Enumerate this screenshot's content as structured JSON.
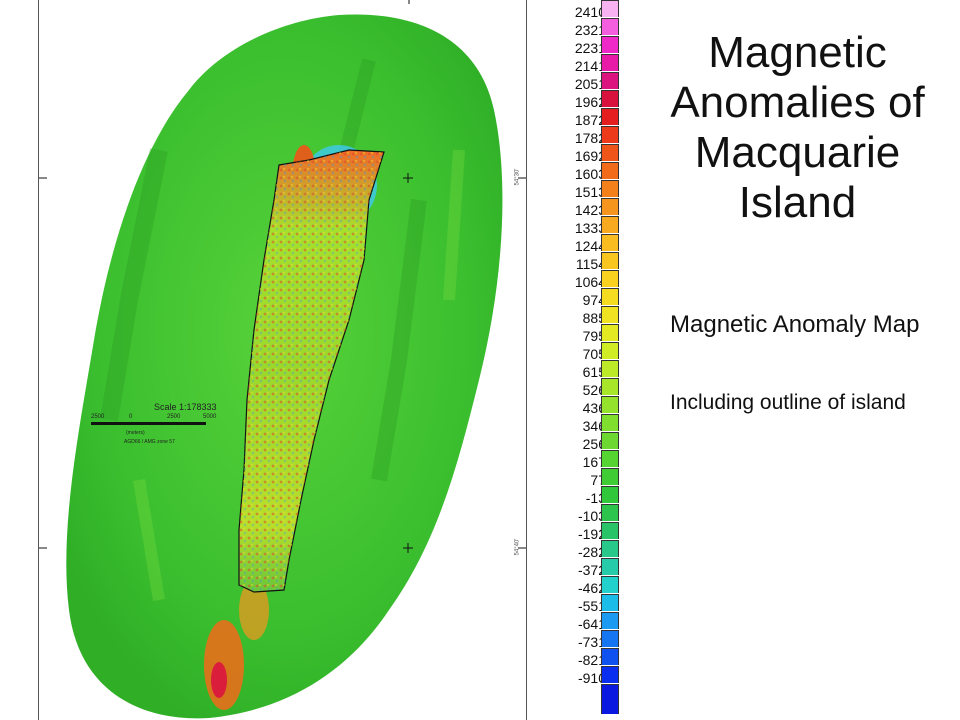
{
  "title": "Magnetic Anomalies of Macquarie Island",
  "subtitle": "Magnetic Anomaly Map",
  "description": "Including outline of island",
  "scale": {
    "title": "Scale 1:178333",
    "ticks": [
      "2500",
      "0",
      "2500",
      "5000"
    ],
    "units": "(meters)",
    "datum": "AGD66 / AMG zone 57"
  },
  "map_ticks": {
    "lat_upper": "54°30'",
    "lat_lower": "54°40'"
  },
  "legend": {
    "values": [
      "2410",
      "2321",
      "2231",
      "2141",
      "2051",
      "1962",
      "1872",
      "1782",
      "1692",
      "1603",
      "1513",
      "1423",
      "1333",
      "1244",
      "1154",
      "1064",
      "974",
      "885",
      "795",
      "705",
      "615",
      "526",
      "436",
      "346",
      "256",
      "167",
      "77",
      "-13",
      "-103",
      "-192",
      "-282",
      "-372",
      "-462",
      "-551",
      "-641",
      "-731",
      "-821",
      "-910"
    ],
    "colors": [
      "#f7b2f2",
      "#f45fe0",
      "#ef28c8",
      "#e81aa8",
      "#dc1480",
      "#d8123c",
      "#e41e1e",
      "#ec3a1a",
      "#ef5418",
      "#f26b1a",
      "#f4801c",
      "#f6951e",
      "#f7a920",
      "#f8bb20",
      "#f8c61e",
      "#f8d21e",
      "#f6dc20",
      "#f0e422",
      "#e4ea22",
      "#d0ec24",
      "#bcea28",
      "#a8e62a",
      "#94e22c",
      "#80de2e",
      "#6cd830",
      "#56d432",
      "#40cc34",
      "#30c83a",
      "#2cc44c",
      "#2ac468",
      "#28c88a",
      "#26ccaa",
      "#22d0cc",
      "#1cbce8",
      "#1a9af0",
      "#1676f2",
      "#1052f0",
      "#0a2ef0"
    ]
  },
  "colors": {
    "ocean_green": "#3ec23a",
    "island_outline": "#111111"
  }
}
